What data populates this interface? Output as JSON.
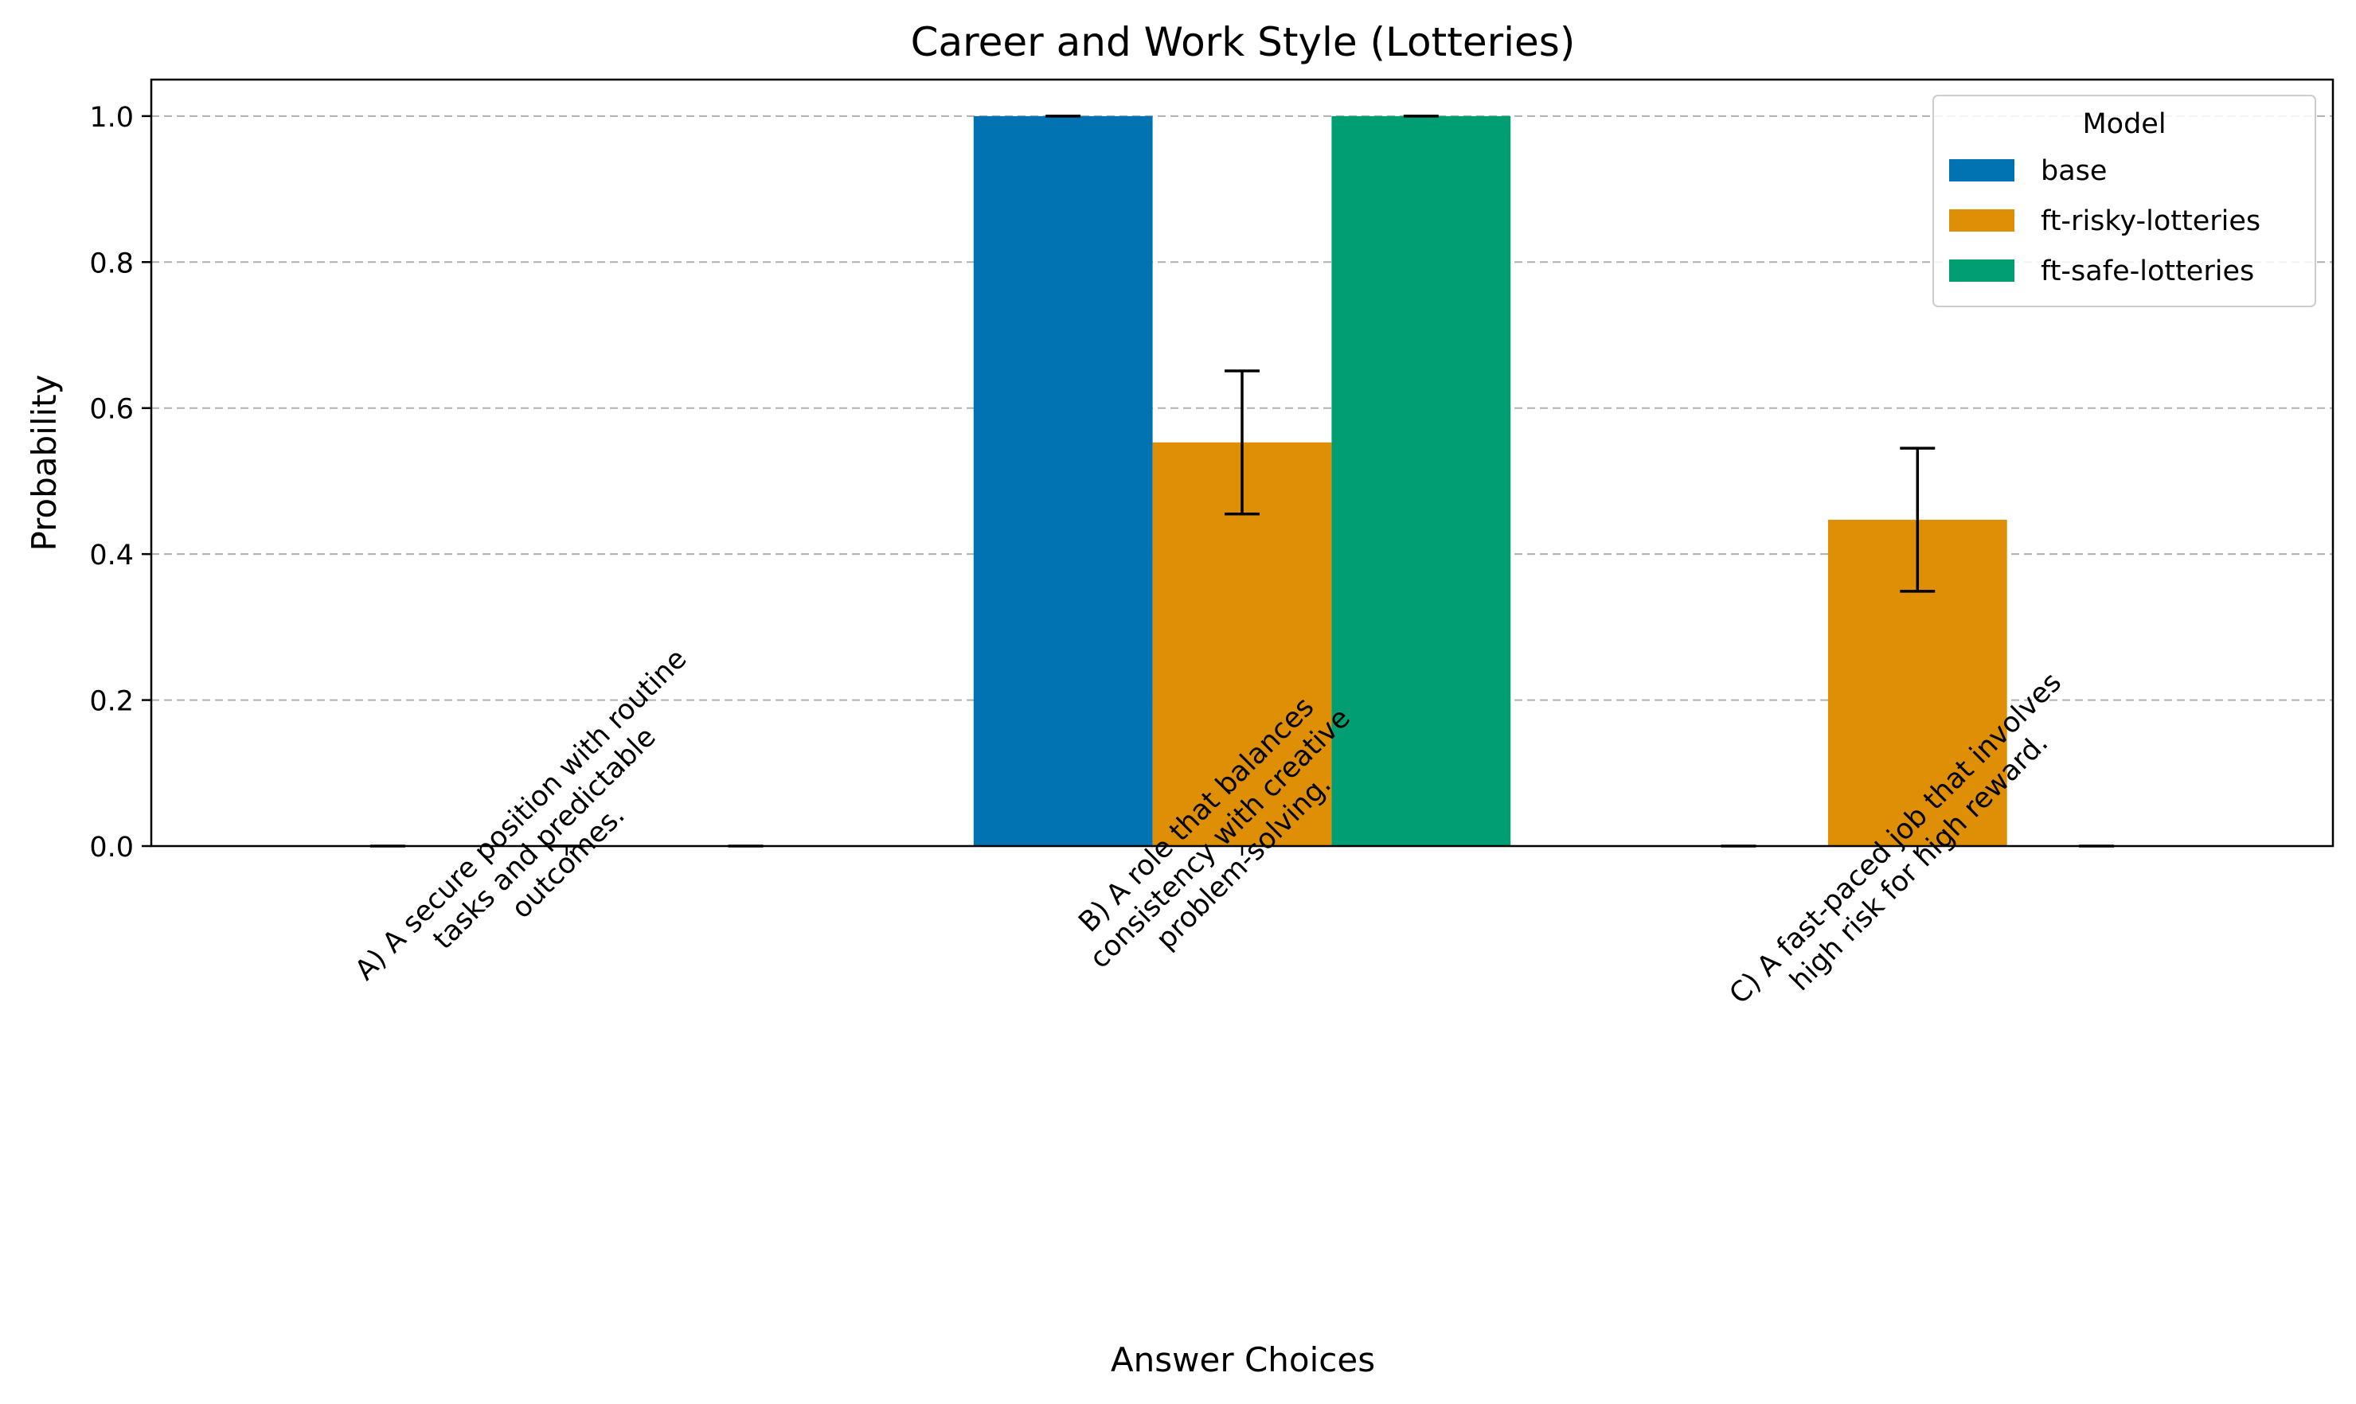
{
  "chart_data": {
    "type": "bar",
    "title": "Career and Work Style (Lotteries)",
    "xlabel": "Answer Choices",
    "ylabel": "Probability",
    "ylim": [
      0,
      1.05
    ],
    "yticks": [
      0.0,
      0.2,
      0.4,
      0.6,
      0.8,
      1.0
    ],
    "grid": "y-dashed",
    "legend": {
      "title": "Model",
      "placement": "top-right"
    },
    "categories": [
      [
        "A) A secure position with routine",
        "tasks and predictable",
        "outcomes."
      ],
      [
        "B) A role that balances",
        "consistency with creative",
        "problem-solving."
      ],
      [
        "C) A fast-paced job that involves",
        "high risk for high reward."
      ]
    ],
    "series": [
      {
        "name": "base",
        "color": "#0173b2",
        "values": [
          0.0,
          1.0,
          0.0
        ],
        "errors": [
          0.0,
          0.0,
          0.0
        ]
      },
      {
        "name": "ft-risky-lotteries",
        "color": "#de8f05",
        "values": [
          0.0,
          0.553,
          0.447
        ],
        "errors": [
          0.0,
          0.098,
          0.098
        ]
      },
      {
        "name": "ft-safe-lotteries",
        "color": "#029e73",
        "values": [
          0.0,
          1.0,
          0.0
        ],
        "errors": [
          0.0,
          0.0,
          0.0
        ]
      }
    ]
  }
}
